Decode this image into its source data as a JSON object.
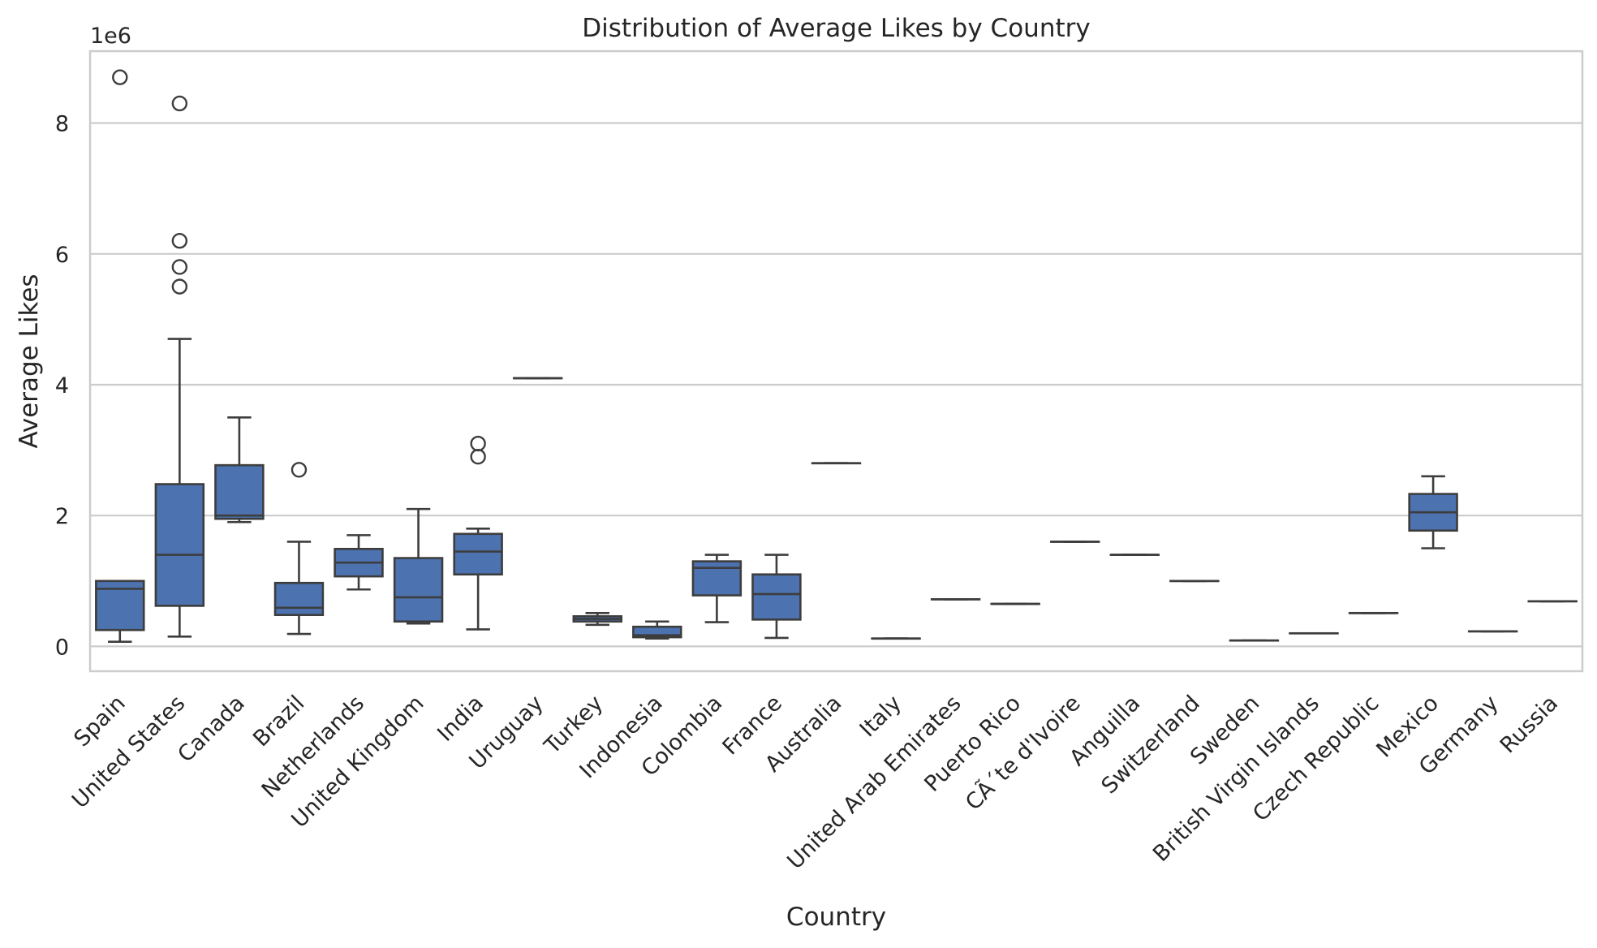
{
  "chart_data": {
    "type": "box",
    "title": "Distribution of Average Likes by Country",
    "xlabel": "Country",
    "ylabel": "Average Likes",
    "y_scale_label": "1e6",
    "ylim": [
      -380000,
      9100000
    ],
    "y_ticks": [
      0,
      2000000,
      4000000,
      6000000,
      8000000
    ],
    "y_tick_labels": [
      "0",
      "2",
      "4",
      "6",
      "8"
    ],
    "grid": "horizontal",
    "colors": {
      "box": "#4c72b0",
      "line": "#3d3d3d",
      "grid": "#cccccc",
      "frame": "#cccccc",
      "text": "#262626"
    },
    "categories": [
      "Spain",
      "United States",
      "Canada",
      "Brazil",
      "Netherlands",
      "United Kingdom",
      "India",
      "Uruguay",
      "Turkey",
      "Indonesia",
      "Colombia",
      "France",
      "Australia",
      "Italy",
      "United Arab Emirates",
      "Puerto Rico",
      "CÃ´te d'Ivoire",
      "Anguilla",
      "Switzerland",
      "Sweden",
      "British Virgin Islands",
      "Czech Republic",
      "Mexico",
      "Germany",
      "Russia"
    ],
    "boxes": [
      {
        "whislo": 70000,
        "q1": 250000,
        "med": 880000,
        "q3": 1000000,
        "whishi": 1000000,
        "fliers": [
          8700000
        ]
      },
      {
        "whislo": 150000,
        "q1": 620000,
        "med": 1400000,
        "q3": 2480000,
        "whishi": 4700000,
        "fliers": [
          8300000,
          6200000,
          5800000,
          5500000
        ]
      },
      {
        "whislo": 1900000,
        "q1": 1950000,
        "med": 2000000,
        "q3": 2770000,
        "whishi": 3500000,
        "fliers": []
      },
      {
        "whislo": 190000,
        "q1": 480000,
        "med": 590000,
        "q3": 970000,
        "whishi": 1600000,
        "fliers": [
          2700000
        ]
      },
      {
        "whislo": 870000,
        "q1": 1070000,
        "med": 1280000,
        "q3": 1490000,
        "whishi": 1700000,
        "fliers": []
      },
      {
        "whislo": 350000,
        "q1": 380000,
        "med": 750000,
        "q3": 1350000,
        "whishi": 2100000,
        "fliers": []
      },
      {
        "whislo": 260000,
        "q1": 1100000,
        "med": 1450000,
        "q3": 1720000,
        "whishi": 1800000,
        "fliers": [
          3100000,
          2900000
        ]
      },
      {
        "whislo": 4100000,
        "q1": 4100000,
        "med": 4100000,
        "q3": 4100000,
        "whishi": 4100000,
        "fliers": []
      },
      {
        "whislo": 330000,
        "q1": 380000,
        "med": 420000,
        "q3": 460000,
        "whishi": 510000,
        "fliers": []
      },
      {
        "whislo": 120000,
        "q1": 140000,
        "med": 170000,
        "q3": 300000,
        "whishi": 380000,
        "fliers": []
      },
      {
        "whislo": 370000,
        "q1": 780000,
        "med": 1200000,
        "q3": 1300000,
        "whishi": 1400000,
        "fliers": []
      },
      {
        "whislo": 130000,
        "q1": 410000,
        "med": 800000,
        "q3": 1100000,
        "whishi": 1400000,
        "fliers": []
      },
      {
        "whislo": 2800000,
        "q1": 2800000,
        "med": 2800000,
        "q3": 2800000,
        "whishi": 2800000,
        "fliers": []
      },
      {
        "whislo": 120000,
        "q1": 120000,
        "med": 120000,
        "q3": 120000,
        "whishi": 120000,
        "fliers": []
      },
      {
        "whislo": 720000,
        "q1": 720000,
        "med": 720000,
        "q3": 720000,
        "whishi": 720000,
        "fliers": []
      },
      {
        "whislo": 650000,
        "q1": 650000,
        "med": 650000,
        "q3": 650000,
        "whishi": 650000,
        "fliers": []
      },
      {
        "whislo": 1600000,
        "q1": 1600000,
        "med": 1600000,
        "q3": 1600000,
        "whishi": 1600000,
        "fliers": []
      },
      {
        "whislo": 1400000,
        "q1": 1400000,
        "med": 1400000,
        "q3": 1400000,
        "whishi": 1400000,
        "fliers": []
      },
      {
        "whislo": 1000000,
        "q1": 1000000,
        "med": 1000000,
        "q3": 1000000,
        "whishi": 1000000,
        "fliers": []
      },
      {
        "whislo": 90000,
        "q1": 90000,
        "med": 90000,
        "q3": 90000,
        "whishi": 90000,
        "fliers": []
      },
      {
        "whislo": 200000,
        "q1": 200000,
        "med": 200000,
        "q3": 200000,
        "whishi": 200000,
        "fliers": []
      },
      {
        "whislo": 510000,
        "q1": 510000,
        "med": 510000,
        "q3": 510000,
        "whishi": 510000,
        "fliers": []
      },
      {
        "whislo": 1500000,
        "q1": 1770000,
        "med": 2050000,
        "q3": 2330000,
        "whishi": 2600000,
        "fliers": []
      },
      {
        "whislo": 230000,
        "q1": 230000,
        "med": 230000,
        "q3": 230000,
        "whishi": 230000,
        "fliers": []
      },
      {
        "whislo": 690000,
        "q1": 690000,
        "med": 690000,
        "q3": 690000,
        "whishi": 690000,
        "fliers": []
      }
    ]
  }
}
